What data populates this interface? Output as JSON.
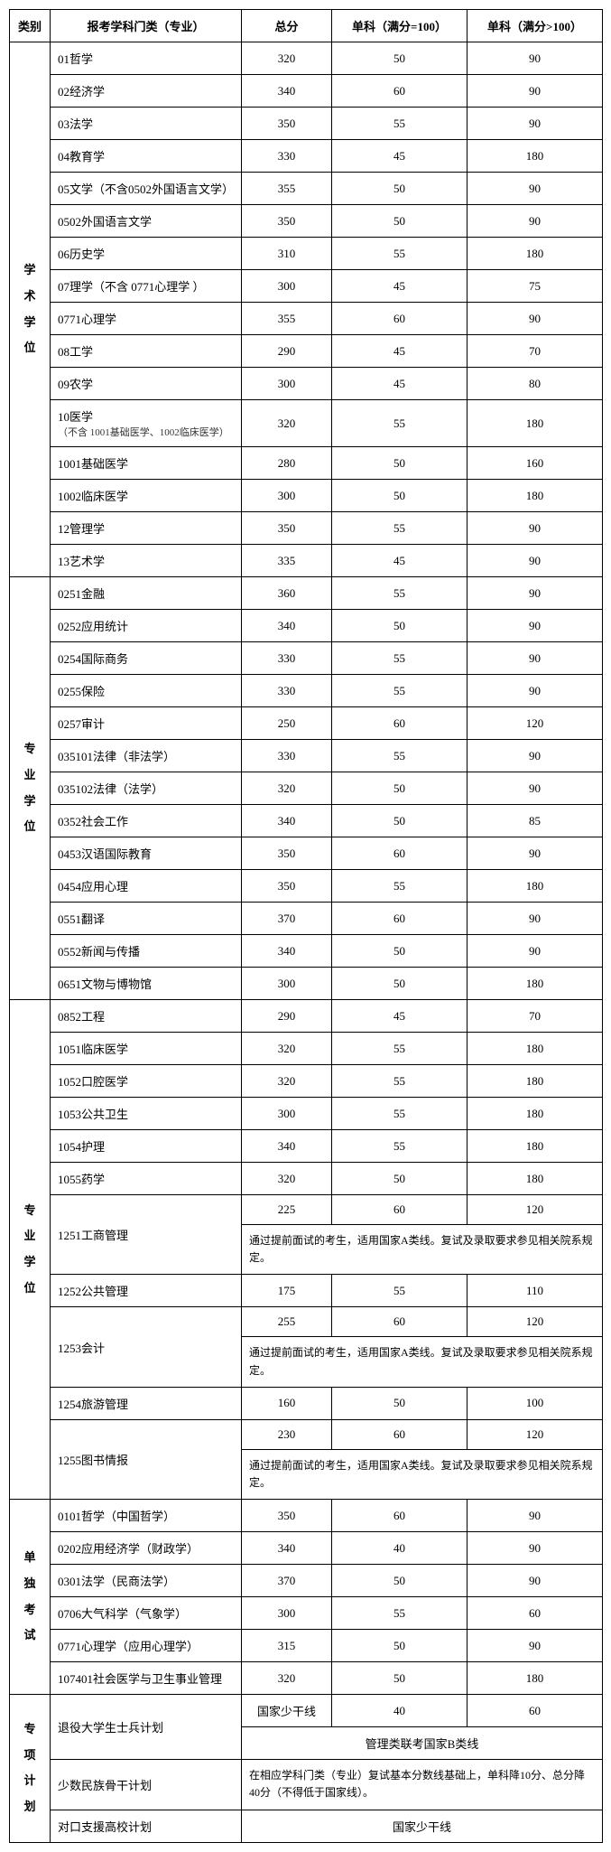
{
  "headers": {
    "category": "类别",
    "subject": "报考学科门类（专业）",
    "total": "总分",
    "single100": "单科（满分=100）",
    "singleGt100": "单科（满分>100）"
  },
  "categories": {
    "academic": "学术学位",
    "professional1": "专业学位",
    "professional2": "专业学位",
    "separate": "单独考试",
    "special": "专项计划"
  },
  "academicRows": [
    {
      "subject": "01哲学",
      "total": "320",
      "s1": "50",
      "s2": "90"
    },
    {
      "subject": "02经济学",
      "total": "340",
      "s1": "60",
      "s2": "90"
    },
    {
      "subject": "03法学",
      "total": "350",
      "s1": "55",
      "s2": "90"
    },
    {
      "subject": "04教育学",
      "total": "330",
      "s1": "45",
      "s2": "180"
    },
    {
      "subject": "05文学（不含0502外国语言文学）",
      "total": "355",
      "s1": "50",
      "s2": "90"
    },
    {
      "subject": "0502外国语言文学",
      "total": "350",
      "s1": "50",
      "s2": "90"
    },
    {
      "subject": "06历史学",
      "total": "310",
      "s1": "55",
      "s2": "180"
    },
    {
      "subject": "07理学（不含 0771心理学 ）",
      "total": "300",
      "s1": "45",
      "s2": "75"
    },
    {
      "subject": "0771心理学",
      "total": "355",
      "s1": "60",
      "s2": "90"
    },
    {
      "subject": "08工学",
      "total": "290",
      "s1": "45",
      "s2": "70"
    },
    {
      "subject": "09农学",
      "total": "300",
      "s1": "45",
      "s2": "80"
    },
    {
      "subject": "10医学",
      "subnote": "（不含 1001基础医学、1002临床医学）",
      "total": "320",
      "s1": "55",
      "s2": "180"
    },
    {
      "subject": "1001基础医学",
      "total": "280",
      "s1": "50",
      "s2": "160"
    },
    {
      "subject": "1002临床医学",
      "total": "300",
      "s1": "50",
      "s2": "180"
    },
    {
      "subject": "12管理学",
      "total": "350",
      "s1": "55",
      "s2": "90"
    },
    {
      "subject": "13艺术学",
      "total": "335",
      "s1": "45",
      "s2": "90"
    }
  ],
  "prof1Rows": [
    {
      "subject": "0251金融",
      "total": "360",
      "s1": "55",
      "s2": "90"
    },
    {
      "subject": "0252应用统计",
      "total": "340",
      "s1": "50",
      "s2": "90"
    },
    {
      "subject": "0254国际商务",
      "total": "330",
      "s1": "55",
      "s2": "90"
    },
    {
      "subject": "0255保险",
      "total": "330",
      "s1": "55",
      "s2": "90"
    },
    {
      "subject": "0257审计",
      "total": "250",
      "s1": "60",
      "s2": "120"
    },
    {
      "subject": "035101法律（非法学）",
      "total": "330",
      "s1": "55",
      "s2": "90"
    },
    {
      "subject": "035102法律（法学）",
      "total": "320",
      "s1": "50",
      "s2": "90"
    },
    {
      "subject": "0352社会工作",
      "total": "340",
      "s1": "50",
      "s2": "85"
    },
    {
      "subject": "0453汉语国际教育",
      "total": "350",
      "s1": "60",
      "s2": "90"
    },
    {
      "subject": "0454应用心理",
      "total": "350",
      "s1": "55",
      "s2": "180"
    },
    {
      "subject": "0551翻译",
      "total": "370",
      "s1": "60",
      "s2": "90"
    },
    {
      "subject": "0552新闻与传播",
      "total": "340",
      "s1": "50",
      "s2": "90"
    },
    {
      "subject": "0651文物与博物馆",
      "total": "300",
      "s1": "50",
      "s2": "180"
    }
  ],
  "prof2Rows": [
    {
      "subject": "0852工程",
      "total": "290",
      "s1": "45",
      "s2": "70"
    },
    {
      "subject": "1051临床医学",
      "total": "320",
      "s1": "55",
      "s2": "180"
    },
    {
      "subject": "1052口腔医学",
      "total": "320",
      "s1": "55",
      "s2": "180"
    },
    {
      "subject": "1053公共卫生",
      "total": "300",
      "s1": "55",
      "s2": "180"
    },
    {
      "subject": "1054护理",
      "total": "340",
      "s1": "55",
      "s2": "180"
    },
    {
      "subject": "1055药学",
      "total": "320",
      "s1": "50",
      "s2": "180"
    }
  ],
  "mgmtRows": {
    "r1251": {
      "subject": "1251工商管理",
      "total": "225",
      "s1": "60",
      "s2": "120"
    },
    "r1252": {
      "subject": "1252公共管理",
      "total": "175",
      "s1": "55",
      "s2": "110"
    },
    "r1253": {
      "subject": "1253会计",
      "total": "255",
      "s1": "60",
      "s2": "120"
    },
    "r1254": {
      "subject": "1254旅游管理",
      "total": "160",
      "s1": "50",
      "s2": "100"
    },
    "r1255": {
      "subject": "1255图书情报",
      "total": "230",
      "s1": "60",
      "s2": "120"
    }
  },
  "noteA": "通过提前面试的考生，适用国家A类线。复试及录取要求参见相关院系规定。",
  "separateRows": [
    {
      "subject": "0101哲学（中国哲学）",
      "total": "350",
      "s1": "60",
      "s2": "90"
    },
    {
      "subject": "0202应用经济学（财政学）",
      "total": "340",
      "s1": "40",
      "s2": "90"
    },
    {
      "subject": "0301法学（民商法学）",
      "total": "370",
      "s1": "50",
      "s2": "90"
    },
    {
      "subject": "0706大气科学（气象学）",
      "total": "300",
      "s1": "55",
      "s2": "60"
    },
    {
      "subject": "0771心理学（应用心理学）",
      "total": "315",
      "s1": "50",
      "s2": "90"
    },
    {
      "subject": "107401社会医学与卫生事业管理",
      "total": "320",
      "s1": "50",
      "s2": "180"
    }
  ],
  "specialRows": {
    "veteran": {
      "subject": "退役大学生士兵计划",
      "total": "国家少干线",
      "s1": "40",
      "s2": "60"
    },
    "veteranNote": "管理类联考国家B类线",
    "minority": {
      "subject": "少数民族骨干计划"
    },
    "minorityNote": "在相应学科门类（专业）复试基本分数线基础上，单科降10分、总分降40分（不得低于国家线）。",
    "support": {
      "subject": "对口支援高校计划",
      "note": "国家少干线"
    }
  }
}
